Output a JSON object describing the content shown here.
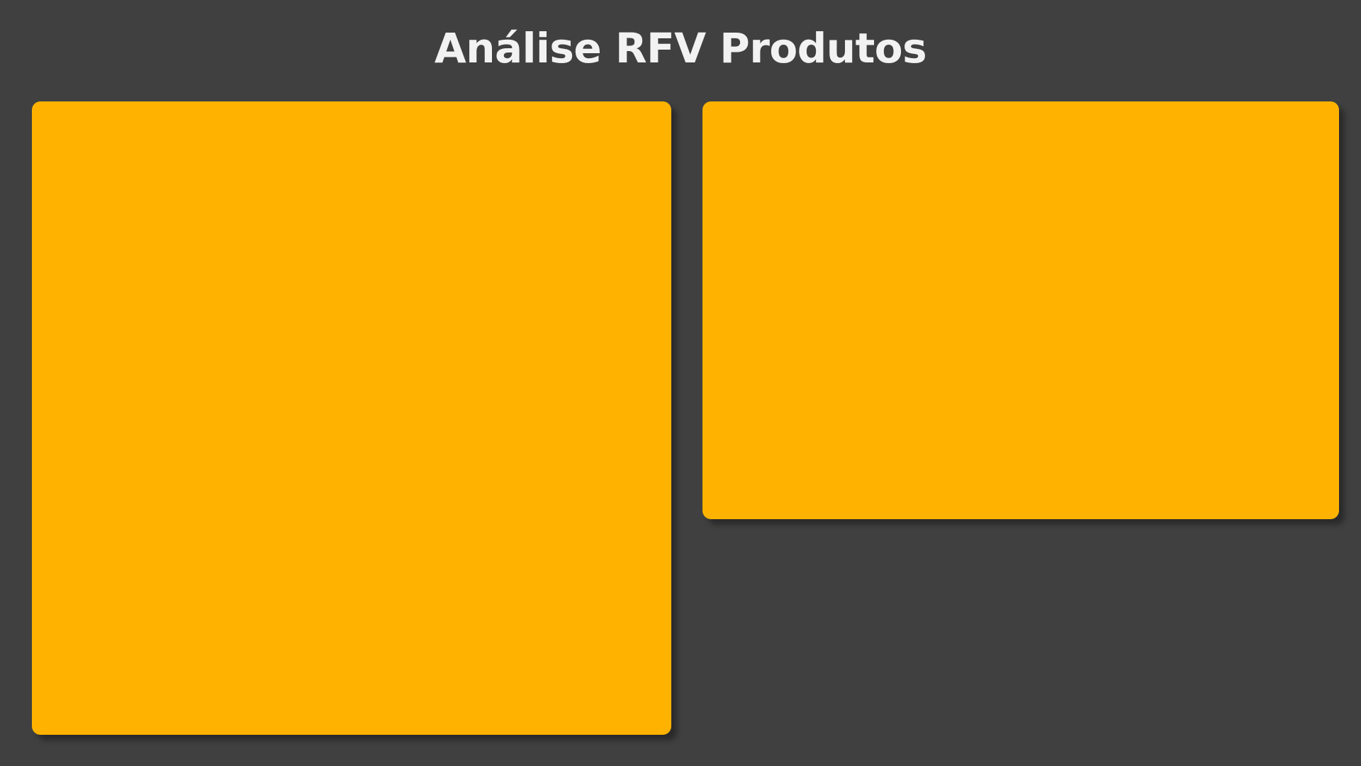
{
  "page": {
    "title": "Análise RFV Produtos",
    "background_color": "#404040",
    "title_color": "#F2F2F2"
  },
  "panels": [
    {
      "name": "left-panel",
      "color": "#FFB300"
    },
    {
      "name": "right-panel",
      "color": "#FFB300"
    }
  ]
}
